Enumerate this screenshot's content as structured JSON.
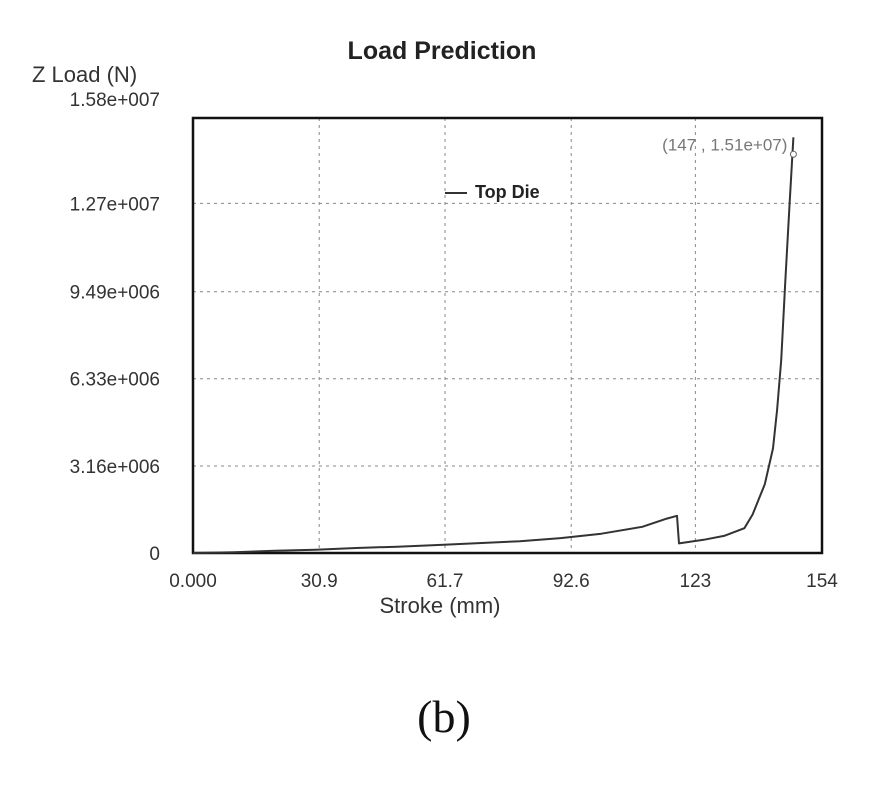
{
  "chart_data": {
    "type": "line",
    "title": "Load Prediction",
    "ylabel": "Z Load (N)",
    "xlabel": "Stroke (mm)",
    "xlim": [
      0,
      154
    ],
    "ylim": [
      0,
      15800000
    ],
    "x_ticks": [
      0,
      30.9,
      61.7,
      92.6,
      123,
      154
    ],
    "x_tick_labels": [
      "0.000",
      "30.9",
      "61.7",
      "92.6",
      "123",
      "154"
    ],
    "y_ticks": [
      0,
      3160000,
      6330000,
      9490000,
      12700000,
      15800000
    ],
    "y_tick_labels": [
      "0",
      "3.16e+006",
      "6.33e+006",
      "9.49e+006",
      "1.27e+007",
      "1.58e+007"
    ],
    "grid": true,
    "legend": {
      "position": "top-center",
      "entries": [
        "Top Die"
      ]
    },
    "series": [
      {
        "name": "Top Die",
        "color": "#333333",
        "x": [
          0,
          10,
          20,
          30,
          40,
          50,
          60,
          70,
          80,
          90,
          100,
          110,
          116,
          118.5,
          119,
          125,
          130,
          135,
          137,
          140,
          142,
          143,
          144,
          145,
          146,
          147
        ],
        "y": [
          0,
          30000,
          80000,
          120000,
          180000,
          230000,
          290000,
          360000,
          430000,
          540000,
          700000,
          950000,
          1250000,
          1350000,
          350000,
          480000,
          620000,
          900000,
          1400000,
          2500000,
          3800000,
          5200000,
          7000000,
          9800000,
          12500000,
          15100000
        ]
      }
    ],
    "annotations": [
      {
        "text": "(147 , 1.51e+07)",
        "x": 147,
        "y": 15100000,
        "anchor": "left-of-point"
      }
    ]
  },
  "caption": "(b)"
}
